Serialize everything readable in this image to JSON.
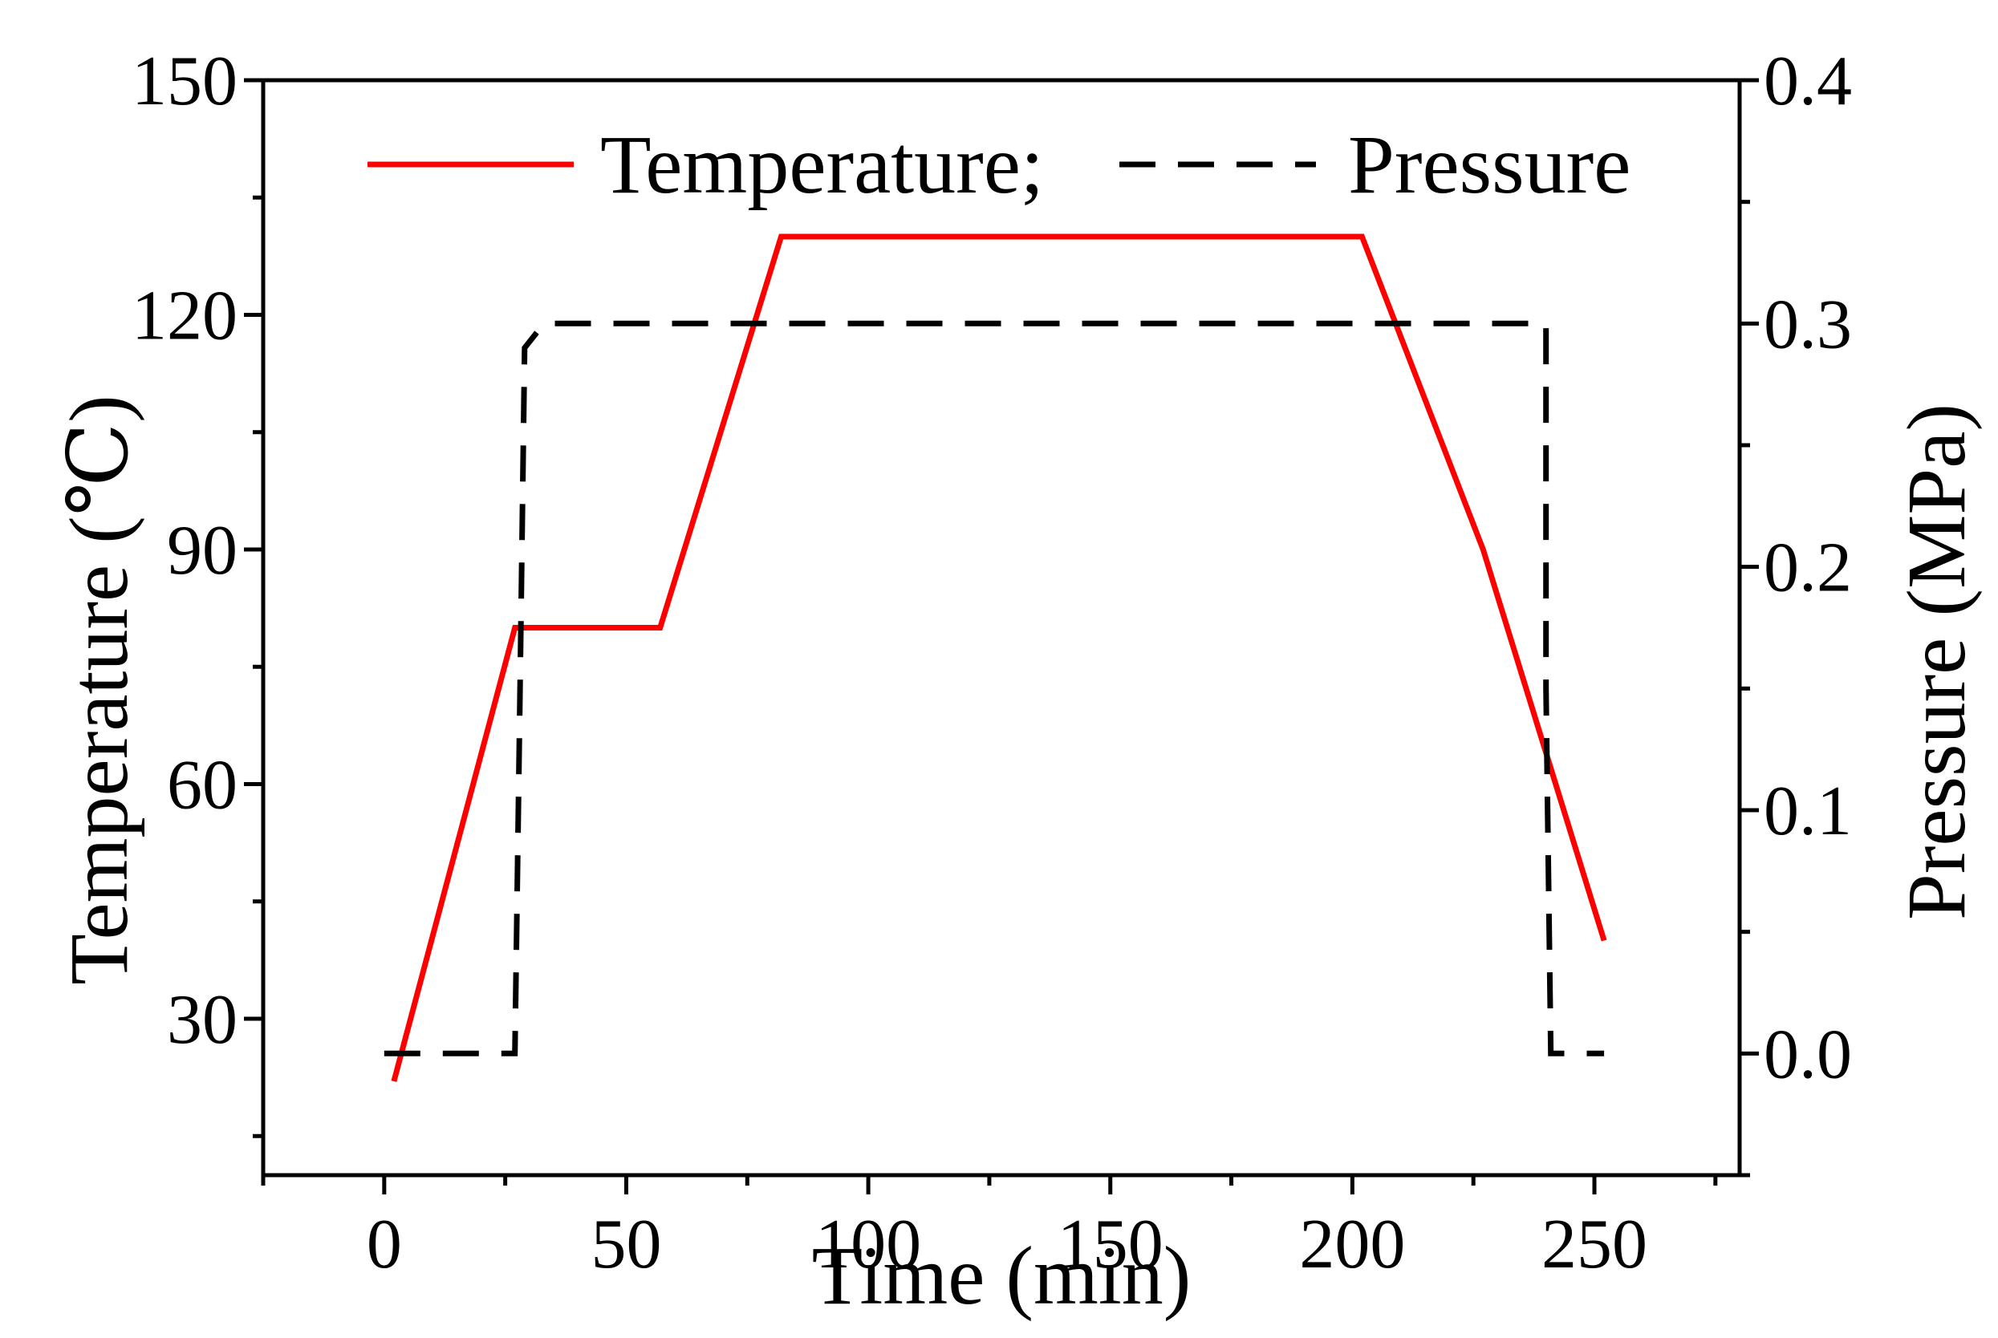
{
  "chart_data": {
    "type": "line",
    "xlabel": "Time (min)",
    "ylabel_left": "Temperature (℃)",
    "ylabel_right": "Pressure (MPa)",
    "xlim": [
      -25,
      280
    ],
    "ylim_left": [
      10,
      150
    ],
    "ylim_right": [
      -0.05,
      0.4
    ],
    "x_ticks": [
      0,
      50,
      100,
      150,
      200,
      250
    ],
    "y_left_ticks": [
      30,
      60,
      90,
      120,
      150
    ],
    "y_right_ticks": [
      "0.0",
      "0.1",
      "0.2",
      "0.3",
      "0.4"
    ],
    "grid": false,
    "legend": {
      "position": "top",
      "entries": [
        "Temperature;",
        "Pressure"
      ]
    },
    "series": [
      {
        "name": "Temperature",
        "axis": "left",
        "style": "solid",
        "color": "#ff0000",
        "x": [
          2,
          27,
          57,
          82,
          202,
          227,
          252
        ],
        "y": [
          22,
          80,
          80,
          130,
          130,
          90,
          40
        ]
      },
      {
        "name": "Pressure",
        "axis": "right",
        "style": "dashed",
        "color": "#000000",
        "x": [
          0,
          27,
          28,
          29,
          33,
          240,
          240,
          241,
          252
        ],
        "y": [
          0.0,
          0.0,
          0.14,
          0.29,
          0.3,
          0.3,
          0.15,
          0.0,
          0.0
        ]
      }
    ]
  }
}
